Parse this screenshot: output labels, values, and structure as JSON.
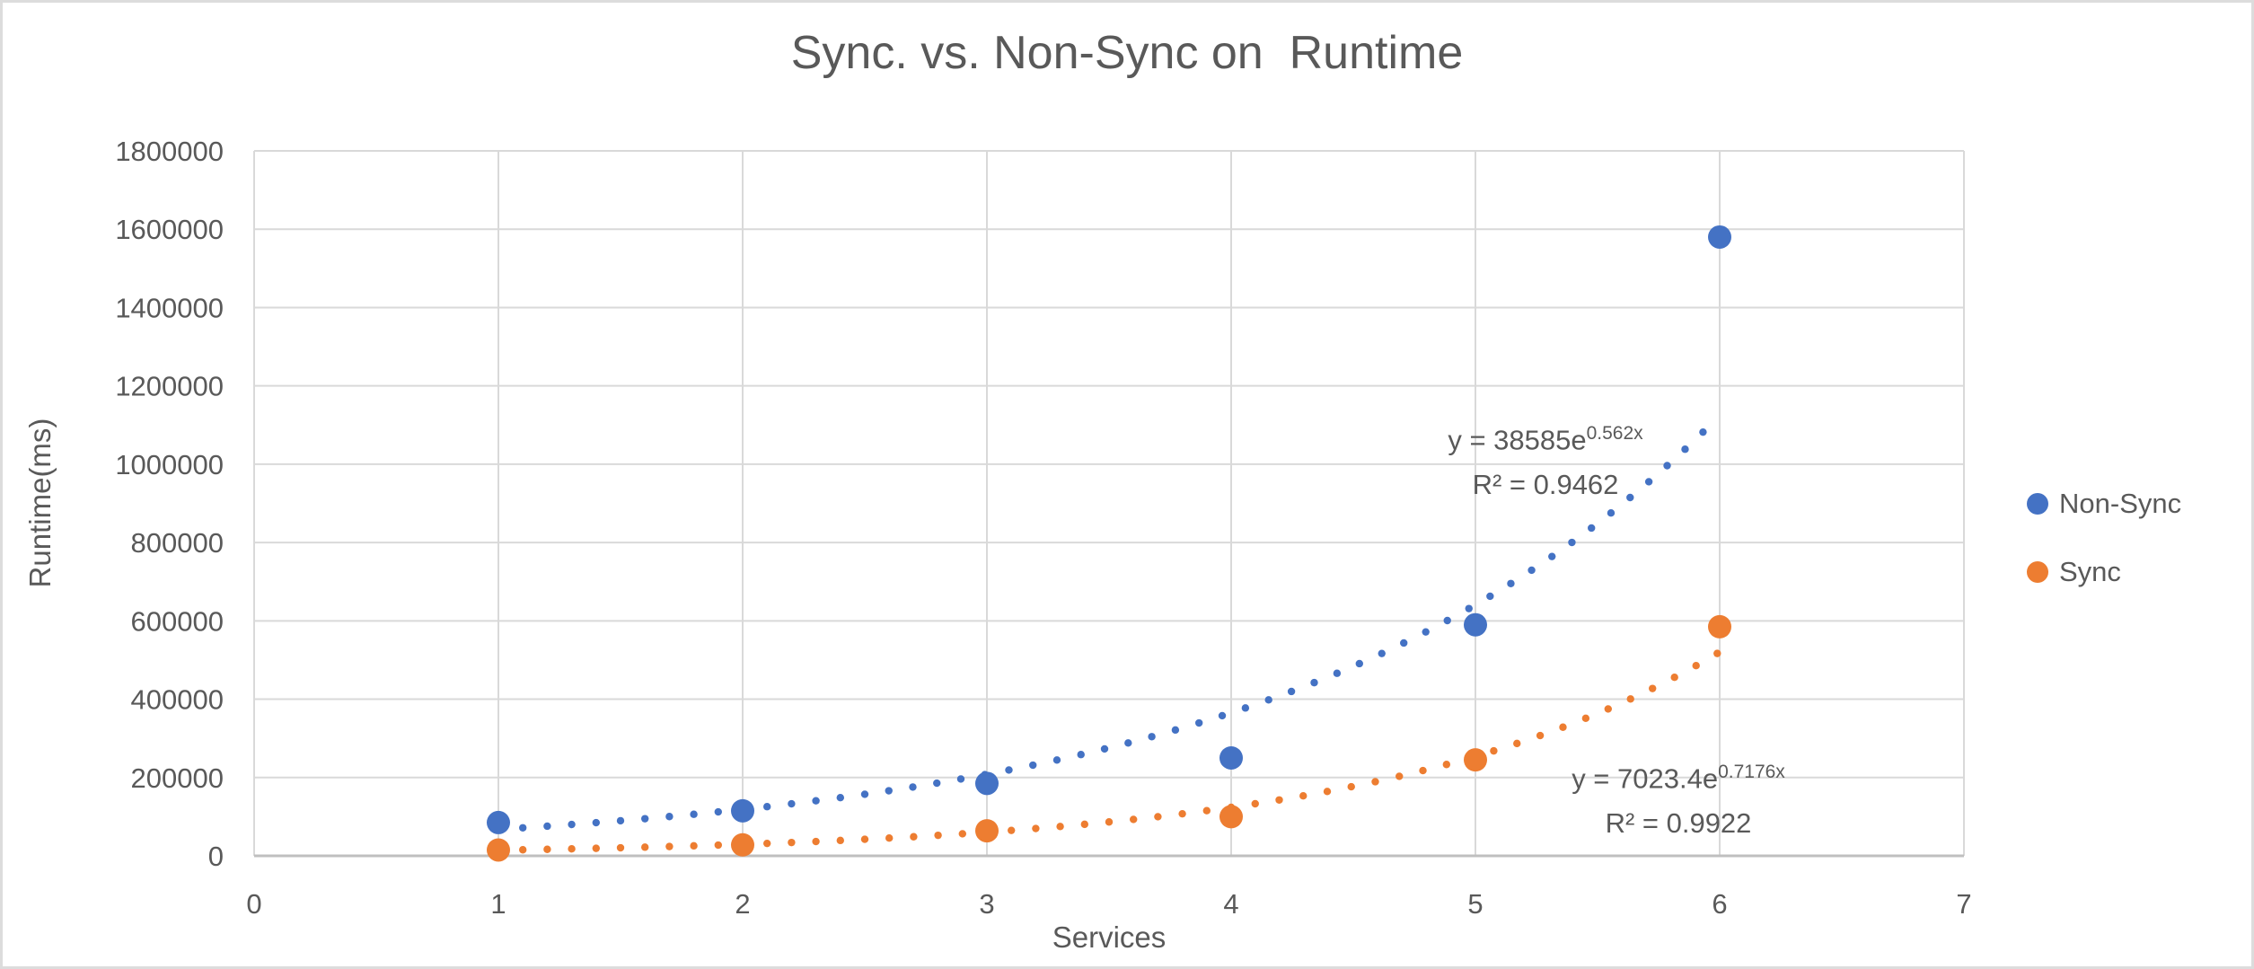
{
  "frame": {
    "background": "#ffffff",
    "border_color": "#dcdcdc"
  },
  "chart_data": {
    "type": "scatter",
    "title": "Sync. vs. Non-Sync on  Runtime",
    "xlabel": "Services",
    "ylabel": "Runtime(ms)",
    "xlim": [
      0,
      7
    ],
    "ylim": [
      0,
      1800000
    ],
    "xtick_step": 1,
    "ytick_step": 200000,
    "grid": true,
    "legend_position": "right",
    "text_color": "#595959",
    "gridline_color": "#d9d9d9",
    "axis_color": "#bfbfbf",
    "x": [
      1,
      2,
      3,
      4,
      5,
      6
    ],
    "series": [
      {
        "name": "Non-Sync",
        "color": "#4472C4",
        "values": [
          85000,
          115000,
          185000,
          250000,
          590000,
          1580000
        ],
        "trendline": {
          "type": "exponential",
          "a": 38585,
          "b": 0.562,
          "x_start": 1,
          "x_end": 6,
          "equation_base": "y = 38585e",
          "equation_exponent": "0.562x",
          "r_squared_label": "R² = 0.9462"
        }
      },
      {
        "name": "Sync",
        "color": "#ED7D31",
        "values": [
          15000,
          28000,
          64000,
          100000,
          245000,
          585000
        ],
        "trendline": {
          "type": "exponential",
          "a": 7023.4,
          "b": 0.7176,
          "x_start": 1,
          "x_end": 6,
          "equation_base": "y = 7023.4e",
          "equation_exponent": "0.7176x",
          "r_squared_label": "R² = 0.9922"
        }
      }
    ]
  }
}
